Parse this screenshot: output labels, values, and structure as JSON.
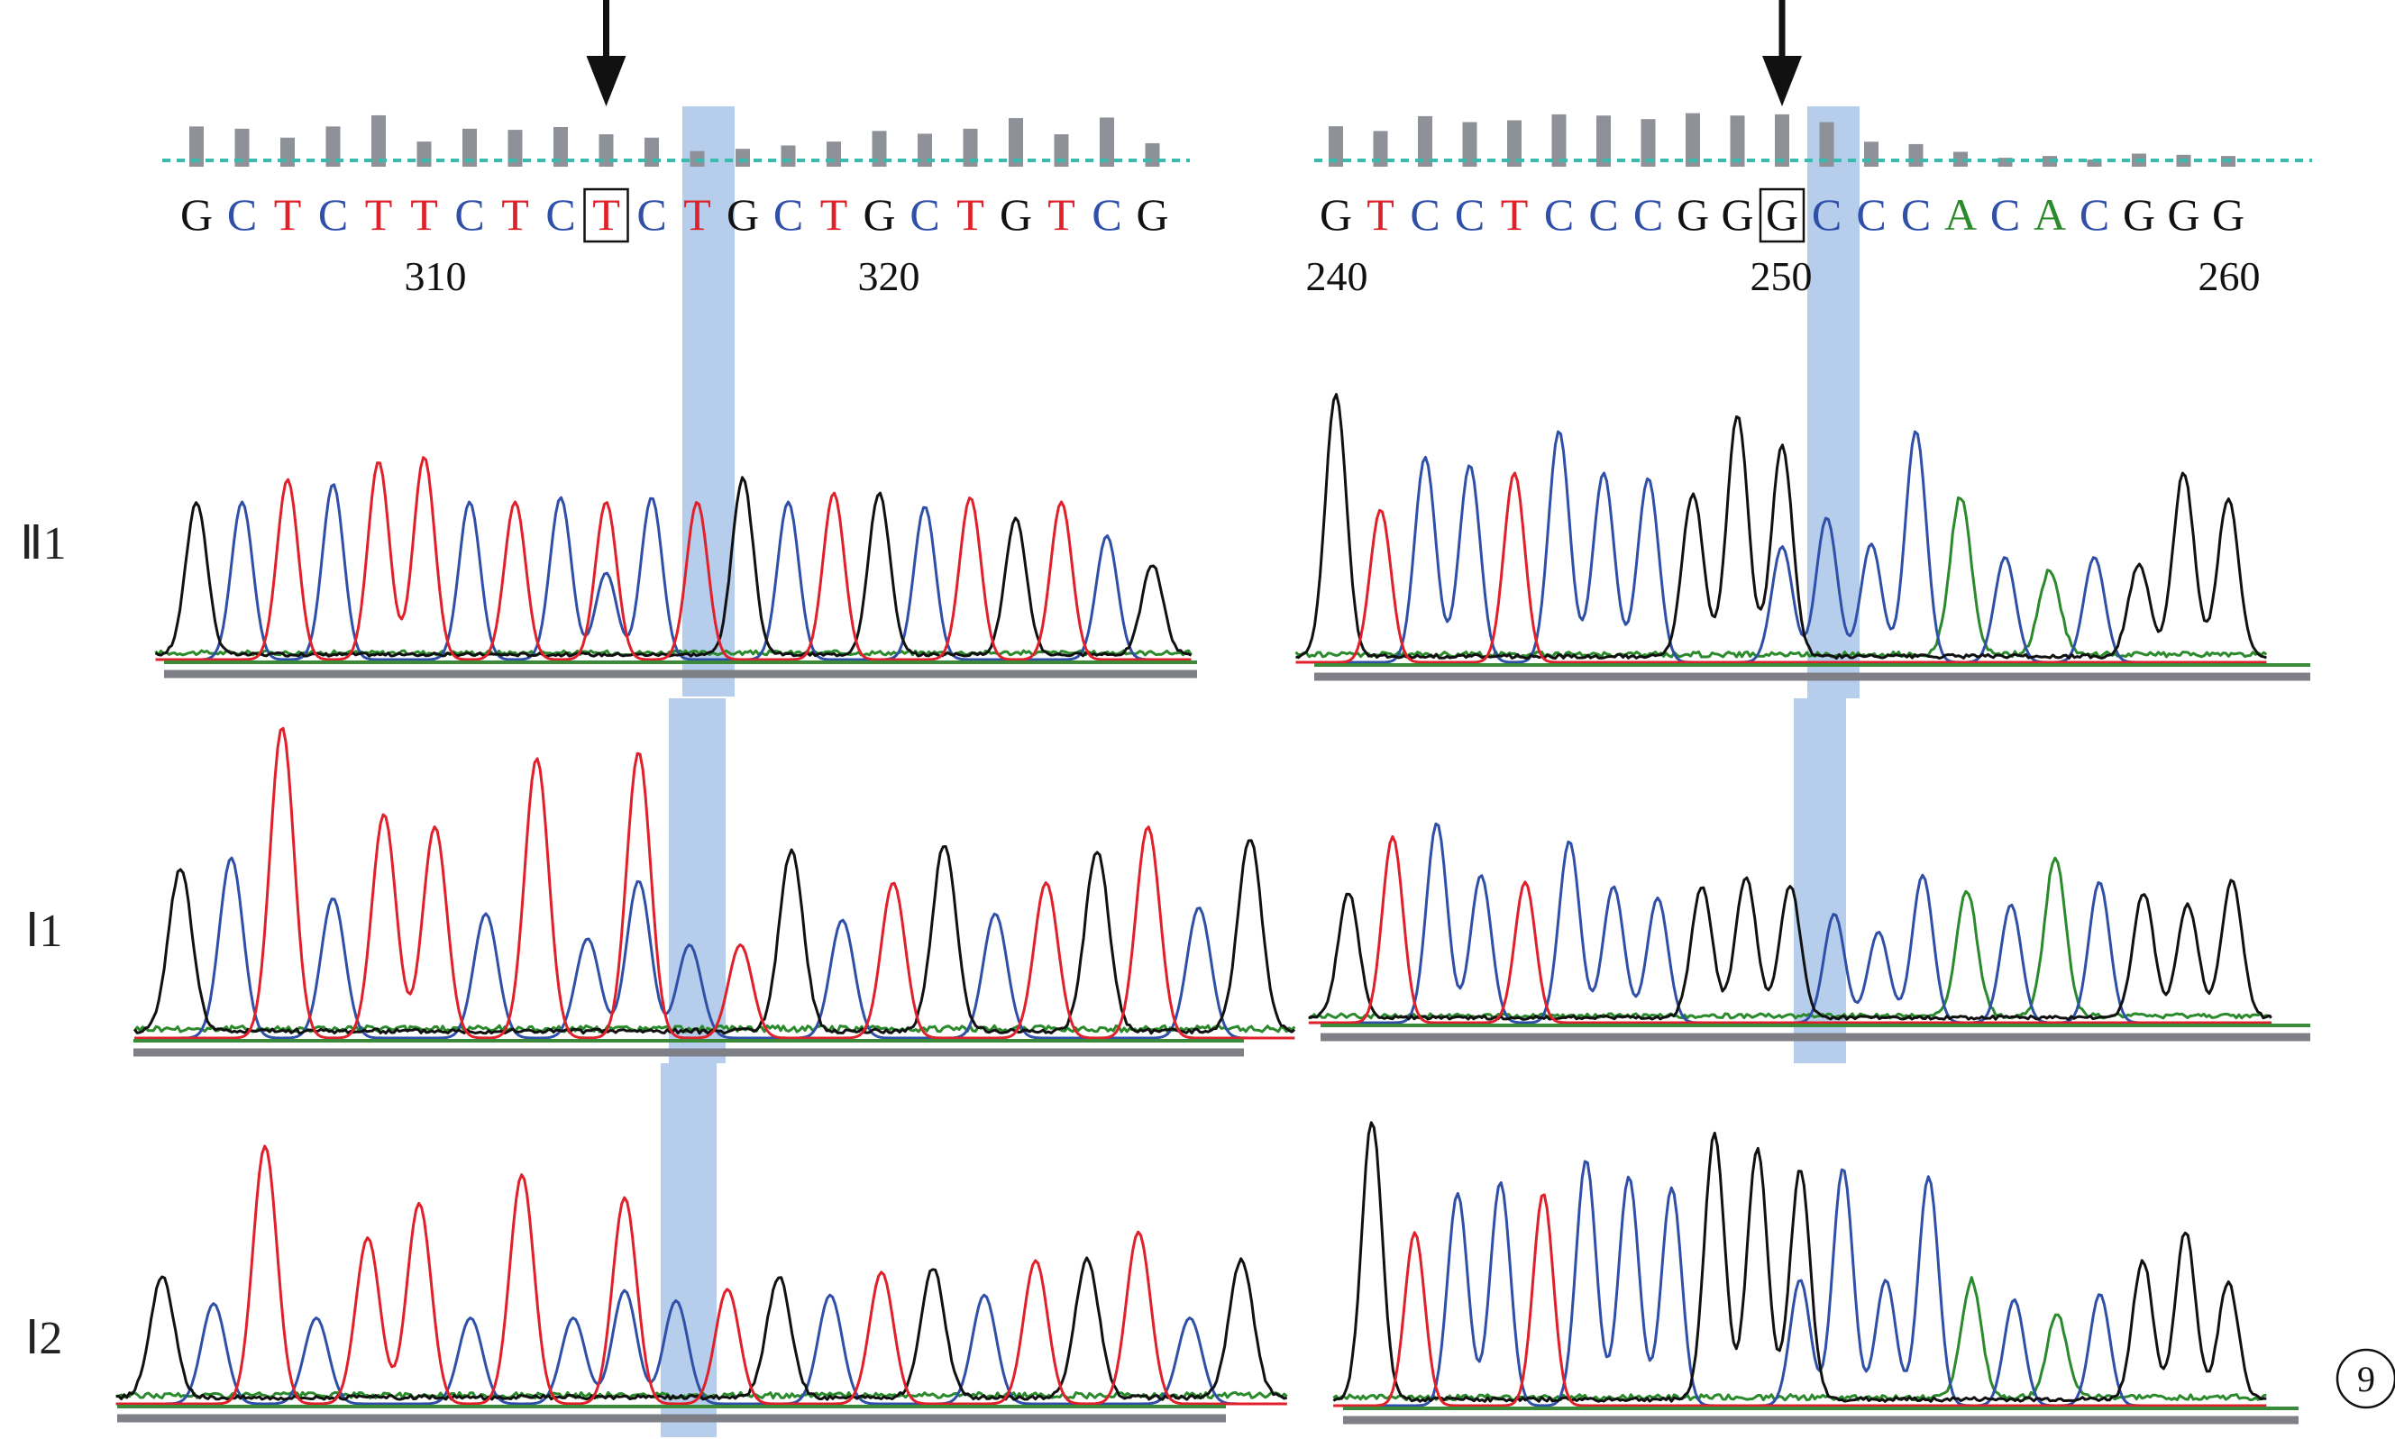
{
  "colors": {
    "A": "#2b8a2b",
    "C": "#2f4fa8",
    "G": "#111111",
    "T": "#e0202a",
    "highlight": "#a9c4e8",
    "quality": "#8f9199",
    "threshold": "#3bb9ad",
    "baseline": "#3a8a3a",
    "axis": "#7f8087"
  },
  "icons": {
    "arrow": "down-arrow-icon"
  },
  "row_labels": [
    "Ⅱ1",
    "Ⅰ1",
    "Ⅰ2"
  ],
  "panel_label": "9",
  "left": {
    "sequence": [
      "G",
      "C",
      "T",
      "C",
      "T",
      "T",
      "C",
      "T",
      "C",
      "T",
      "C",
      "T",
      "G",
      "C",
      "T",
      "G",
      "C",
      "T",
      "G",
      "T",
      "C",
      "G"
    ],
    "highlight_index": 9,
    "positions": [
      "310",
      "320"
    ],
    "quality": [
      0.72,
      0.68,
      0.52,
      0.72,
      0.92,
      0.45,
      0.68,
      0.66,
      0.71,
      0.58,
      0.52,
      0.28,
      0.32,
      0.38,
      0.45,
      0.64,
      0.59,
      0.68,
      0.87,
      0.58,
      0.88,
      0.42
    ],
    "traces": [
      {
        "label": "Ⅱ1",
        "mutation": "hetero",
        "peaks": [
          0.68,
          0.7,
          0.8,
          0.78,
          0.88,
          0.9,
          0.7,
          0.7,
          0.72,
          0.7,
          0.72,
          0.7,
          0.78,
          0.7,
          0.74,
          0.72,
          0.68,
          0.72,
          0.6,
          0.7,
          0.55,
          0.4
        ]
      },
      {
        "label": "Ⅰ1",
        "mutation": "hetero",
        "peaks": [
          0.52,
          0.58,
          1.0,
          0.45,
          0.72,
          0.68,
          0.4,
          0.9,
          0.32,
          0.92,
          0.3,
          0.3,
          0.58,
          0.38,
          0.5,
          0.6,
          0.4,
          0.5,
          0.58,
          0.68,
          0.42,
          0.62
        ]
      },
      {
        "label": "Ⅰ2",
        "mutation": "hetero",
        "peaks": [
          0.42,
          0.35,
          0.9,
          0.3,
          0.58,
          0.7,
          0.3,
          0.8,
          0.3,
          0.72,
          0.36,
          0.4,
          0.42,
          0.38,
          0.46,
          0.45,
          0.38,
          0.5,
          0.48,
          0.6,
          0.3,
          0.48
        ]
      }
    ]
  },
  "right": {
    "sequence": [
      "G",
      "T",
      "C",
      "C",
      "T",
      "C",
      "C",
      "C",
      "G",
      "G",
      "G",
      "C",
      "C",
      "C",
      "A",
      "C",
      "A",
      "C",
      "G",
      "G",
      "G"
    ],
    "highlight_index": 10,
    "positions": [
      "240",
      "250",
      "260"
    ],
    "quality": [
      0.68,
      0.6,
      0.85,
      0.75,
      0.78,
      0.88,
      0.86,
      0.8,
      0.9,
      0.86,
      0.88,
      0.75,
      0.42,
      0.38,
      0.25,
      0.15,
      0.18,
      0.12,
      0.22,
      0.2,
      0.18
    ],
    "traces": [
      {
        "label": "Ⅱ1",
        "mutation": "hetero",
        "peaks": [
          1.0,
          0.58,
          0.78,
          0.75,
          0.72,
          0.88,
          0.72,
          0.7,
          0.62,
          0.92,
          0.8,
          0.55,
          0.45,
          0.88,
          0.6,
          0.4,
          0.32,
          0.4,
          0.35,
          0.7,
          0.6
        ]
      },
      {
        "label": "Ⅰ1",
        "mutation": "normal",
        "peaks": [
          0.55,
          0.82,
          0.88,
          0.65,
          0.62,
          0.8,
          0.6,
          0.55,
          0.58,
          0.62,
          0.58,
          0.48,
          0.4,
          0.65,
          0.55,
          0.52,
          0.7,
          0.62,
          0.55,
          0.5,
          0.6
        ]
      },
      {
        "label": "Ⅰ2",
        "mutation": "hetero",
        "peaks": [
          1.0,
          0.62,
          0.76,
          0.8,
          0.76,
          0.88,
          0.82,
          0.78,
          0.95,
          0.9,
          0.82,
          0.85,
          0.45,
          0.82,
          0.42,
          0.38,
          0.3,
          0.4,
          0.5,
          0.6,
          0.42
        ]
      }
    ]
  }
}
